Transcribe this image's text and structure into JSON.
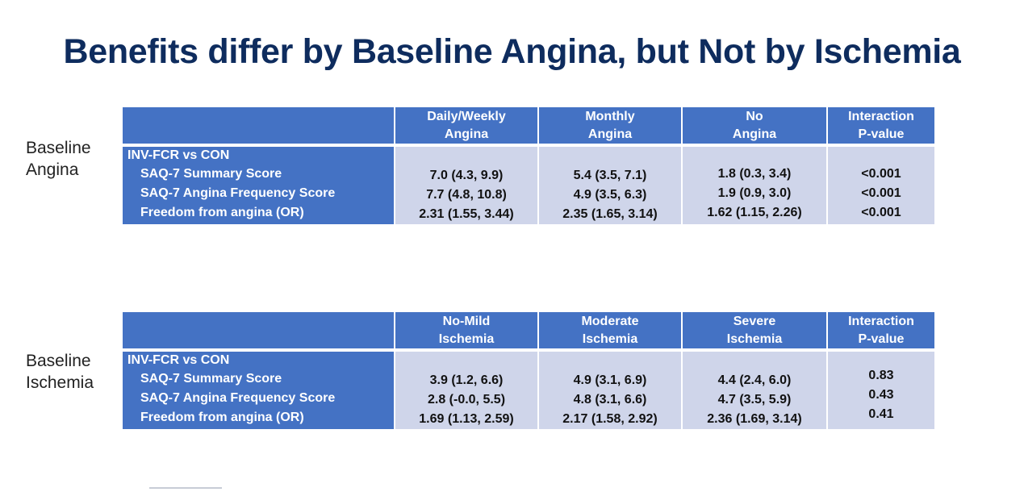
{
  "title": "Benefits differ by Baseline Angina, but Not by Ischemia",
  "tables": [
    {
      "side_label_lines": [
        "Baseline",
        "Angina"
      ],
      "header_cols": [
        [
          "Daily/Weekly",
          "Angina"
        ],
        [
          "Monthly",
          "Angina"
        ],
        [
          "No",
          "Angina"
        ],
        [
          "Interaction",
          "P-value"
        ]
      ],
      "row_group_label": "INV-FCR vs CON",
      "row_labels": [
        "SAQ-7 Summary Score",
        "SAQ-7 Angina Frequency Score",
        "Freedom from angina (OR)"
      ],
      "columns": [
        [
          "7.0 (4.3, 9.9)",
          "7.7 (4.8, 10.8)",
          "2.31 (1.55, 3.44)"
        ],
        [
          "5.4 (3.5, 7.1)",
          "4.9 (3.5, 6.3)",
          "2.35 (1.65, 3.14)"
        ],
        [
          "1.8 (0.3, 3.4)",
          "1.9 (0.9, 3.0)",
          "1.62 (1.15, 2.26)"
        ],
        [
          "<0.001",
          "<0.001",
          "<0.001"
        ]
      ]
    },
    {
      "side_label_lines": [
        "Baseline",
        "Ischemia"
      ],
      "header_cols": [
        [
          "No-Mild",
          "Ischemia"
        ],
        [
          "Moderate",
          "Ischemia"
        ],
        [
          "Severe",
          "Ischemia"
        ],
        [
          "Interaction",
          "P-value"
        ]
      ],
      "row_group_label": "INV-FCR vs CON",
      "row_labels": [
        "SAQ-7 Summary Score",
        "SAQ-7 Angina Frequency Score",
        "Freedom from angina (OR)"
      ],
      "columns": [
        [
          "3.9 (1.2, 6.6)",
          "2.8 (-0.0, 5.5)",
          "1.69 (1.13, 2.59)"
        ],
        [
          "4.9 (3.1, 6.9)",
          "4.8 (3.1, 6.6)",
          "2.17 (1.58, 2.92)"
        ],
        [
          "4.4 (2.4, 6.0)",
          "4.7 (3.5, 5.9)",
          "2.36 (1.69, 3.14)"
        ],
        [
          "0.83",
          "0.43",
          "0.41"
        ]
      ]
    }
  ],
  "colors": {
    "title": "#0e2c5e",
    "header_bg": "#4472c4",
    "cell_bg": "#cfd5ea"
  }
}
